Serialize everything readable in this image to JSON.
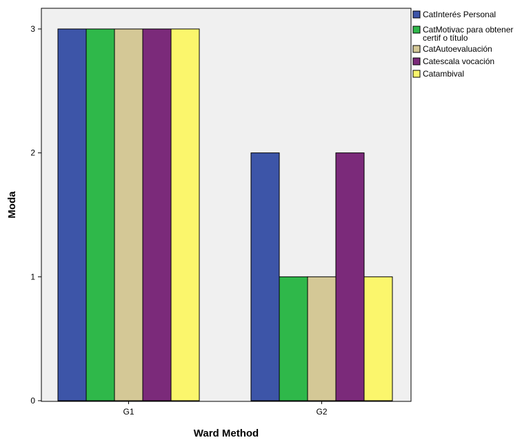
{
  "chart_data": {
    "type": "bar",
    "categories": [
      "G1",
      "G2"
    ],
    "series": [
      {
        "name": "CatInterés Personal",
        "values": [
          3,
          2
        ],
        "color": "#3d55a8"
      },
      {
        "name": "CatMotivac para obtener certif o título",
        "values": [
          3,
          1
        ],
        "color": "#2fb84a"
      },
      {
        "name": "CatAutoevaluación",
        "values": [
          3,
          1
        ],
        "color": "#d4c896"
      },
      {
        "name": "Catescala vocación",
        "values": [
          3,
          2
        ],
        "color": "#7b2a7a"
      },
      {
        "name": "Catambival",
        "values": [
          3,
          1
        ],
        "color": "#fbf66c"
      }
    ],
    "xlabel": "Ward Method",
    "ylabel": "Moda",
    "ylim": [
      0,
      3
    ],
    "yticks": [
      "0",
      "1",
      "2",
      "3"
    ],
    "grid": false,
    "legend": "right",
    "plot_background": "#f0f0f0"
  }
}
